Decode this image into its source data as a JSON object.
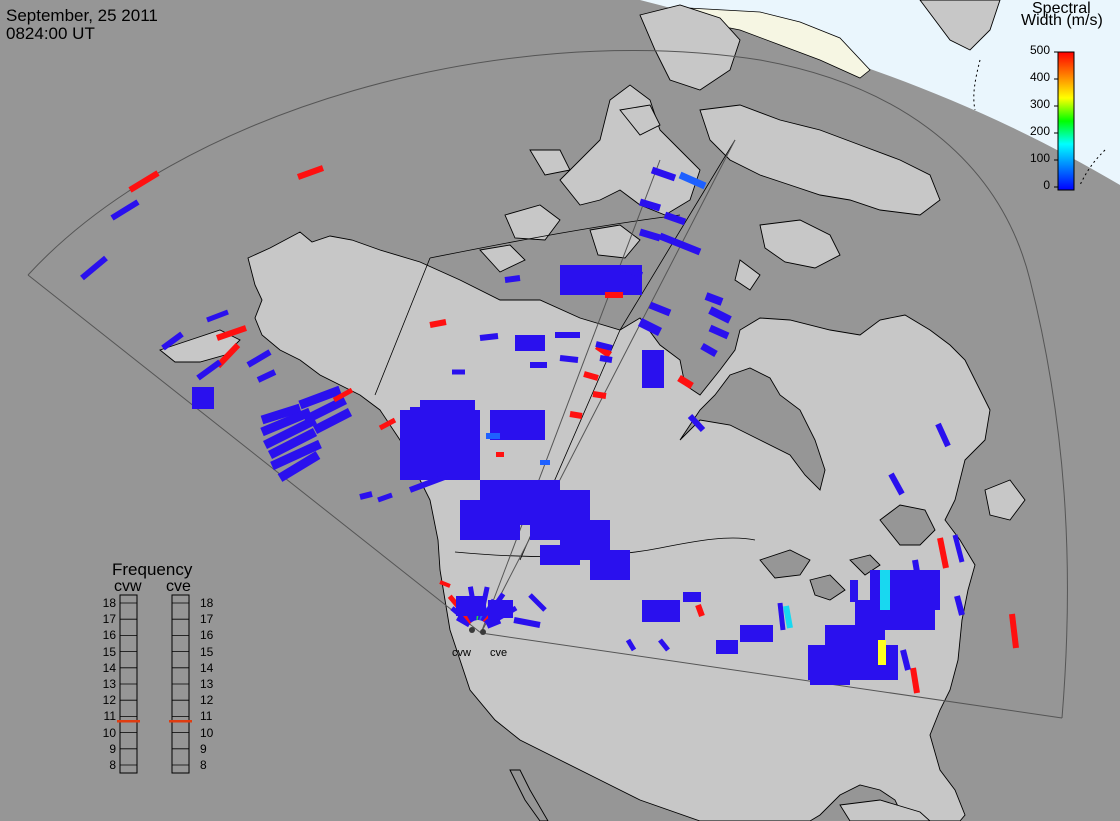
{
  "header": {
    "date": "September, 25 2011",
    "time": "0824:00 UT"
  },
  "colorbar": {
    "title_line1": "Spectral",
    "title_line2": "Width (m/s)",
    "ticks": [
      "500",
      "400",
      "300",
      "200",
      "100",
      "0"
    ],
    "colors": [
      "#ff0000",
      "#ff7f00",
      "#ffff00",
      "#00ff00",
      "#00ffff",
      "#0080ff",
      "#0000ff"
    ]
  },
  "frequency": {
    "title": "Frequency",
    "radars": [
      "cvw",
      "cve"
    ],
    "scale": [
      "18",
      "17",
      "16",
      "15",
      "14",
      "13",
      "12",
      "11",
      "10",
      "9",
      "8"
    ],
    "values_mhz": {
      "cvw": 10.7,
      "cve": 10.7
    }
  },
  "sites": [
    "cvw",
    "cve"
  ],
  "colors": {
    "background": "#969696",
    "land": "#c7c7c7",
    "outline": "#000000",
    "daylight_sea": "#eaf6fd",
    "daylight_land": "#f6f6e3",
    "scatter_low": "#2a10ee",
    "scatter_high": "#ff1010"
  }
}
